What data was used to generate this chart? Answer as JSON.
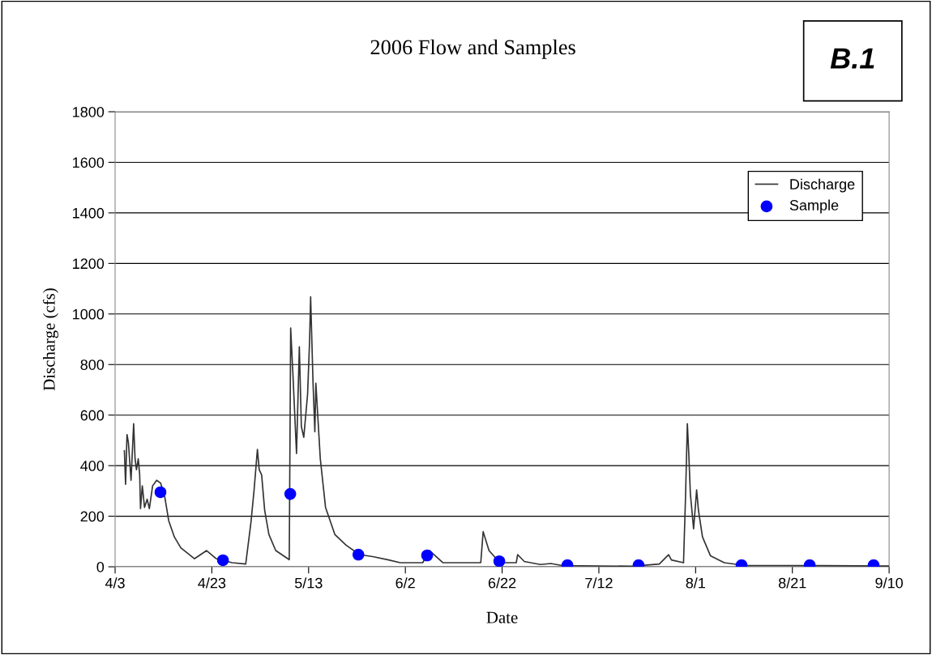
{
  "chart_data": {
    "type": "line",
    "title": "2006 Flow and Samples",
    "xlabel": "Date",
    "ylabel": "Discharge (cfs)",
    "annotations": [
      "B.1"
    ],
    "xlim": [
      "2006-04-03",
      "2006-09-10"
    ],
    "xticks": [
      {
        "value": "2006-04-03",
        "label": "4/3"
      },
      {
        "value": "2006-04-23",
        "label": "4/23"
      },
      {
        "value": "2006-05-13",
        "label": "5/13"
      },
      {
        "value": "2006-06-02",
        "label": "6/2"
      },
      {
        "value": "2006-06-22",
        "label": "6/22"
      },
      {
        "value": "2006-07-12",
        "label": "7/12"
      },
      {
        "value": "2006-08-01",
        "label": "8/1"
      },
      {
        "value": "2006-08-21",
        "label": "8/21"
      },
      {
        "value": "2006-09-10",
        "label": "9/10"
      }
    ],
    "ylim": [
      0,
      1800
    ],
    "yticks": [
      0,
      200,
      400,
      600,
      800,
      1000,
      1200,
      1400,
      1600,
      1800
    ],
    "grid": "y",
    "legend": "top right",
    "series": [
      {
        "name": "Discharge",
        "color": "#333333",
        "marker": "none",
        "line_style": "solid",
        "x": [
          "2006-04-04T22:00",
          "2006-04-05T04:00",
          "2006-04-05T11:00",
          "2006-04-05T18:00",
          "2006-04-06T07:00",
          "2006-04-06T20:00",
          "2006-04-07T03:00",
          "2006-04-07T10:00",
          "2006-04-07T19:00",
          "2006-04-08T02:00",
          "2006-04-08T06:00",
          "2006-04-08T15:00",
          "2006-04-09T02:00",
          "2006-04-09T15:00",
          "2006-04-10T02:00",
          "2006-04-10T18:00",
          "2006-04-11T14:00",
          "2006-04-12T10:00",
          "2006-04-13T06:00",
          "2006-04-14T02:00",
          "2006-04-15T06:00",
          "2006-04-16T14:00",
          "2006-04-19T10:00",
          "2006-04-21T22:00",
          "2006-04-23T22:00",
          "2006-04-27T05:00",
          "2006-04-30T00:00",
          "2006-05-01T02:00",
          "2006-05-01T17:00",
          "2006-05-02T10:00",
          "2006-05-02T19:00",
          "2006-05-03T07:00",
          "2006-05-03T22:00",
          "2006-05-04T19:00",
          "2006-05-06T05:00",
          "2006-05-09T00:00",
          "2006-05-09T07:00",
          "2006-05-09T19:00",
          "2006-05-10T12:00",
          "2006-05-11T02:00",
          "2006-05-11T12:00",
          "2006-05-12T00:00",
          "2006-05-12T19:00",
          "2006-05-13T05:00",
          "2006-05-13T10:00",
          "2006-05-13T22:00",
          "2006-05-14T07:00",
          "2006-05-14T12:00",
          "2006-05-15T10:00",
          "2006-05-16T12:00",
          "2006-05-18T10:00",
          "2006-05-20T17:00",
          "2006-05-23T12:00",
          "2006-05-26T07:00",
          "2006-05-29T14:00",
          "2006-05-31T22:00",
          "2006-06-05T14:00",
          "2006-06-07T00:00",
          "2006-06-09T19:00",
          "2006-06-17T14:00",
          "2006-06-18T02:00",
          "2006-06-19T07:00",
          "2006-06-21T12:00",
          "2006-06-24T22:00",
          "2006-06-25T05:00",
          "2006-06-26T14:00",
          "2006-06-29T22:00",
          "2006-07-02T02:00",
          "2006-07-04T10:00",
          "2006-07-18T22:00",
          "2006-07-24T12:00",
          "2006-07-26T10:00",
          "2006-07-27T00:00",
          "2006-07-29T12:00",
          "2006-07-29T22:00",
          "2006-07-30T07:00",
          "2006-07-30T14:00",
          "2006-07-30T22:00",
          "2006-07-31T14:00",
          "2006-08-01T05:00",
          "2006-08-01T14:00",
          "2006-08-02T10:00",
          "2006-08-04T02:00",
          "2006-08-06T22:00",
          "2006-08-11T07:00",
          "2006-08-19T17:00",
          "2006-09-09T22:00"
        ],
        "values": [
          459,
          326,
          523,
          491,
          342,
          566,
          427,
          384,
          427,
          363,
          230,
          320,
          235,
          267,
          230,
          320,
          342,
          331,
          278,
          182,
          118,
          75,
          32,
          64,
          32,
          16,
          11,
          176,
          299,
          464,
          384,
          363,
          224,
          128,
          64,
          28,
          945,
          747,
          448,
          870,
          555,
          512,
          683,
          897,
          1068,
          726,
          534,
          726,
          427,
          235,
          128,
          86,
          48,
          40,
          27,
          16,
          16,
          64,
          16,
          16,
          139,
          64,
          16,
          16,
          48,
          21,
          9,
          13,
          5,
          2,
          11,
          48,
          27,
          16,
          278,
          566,
          448,
          288,
          150,
          304,
          224,
          118,
          43,
          16,
          5,
          5,
          3
        ]
      },
      {
        "name": "Sample",
        "type": "scatter",
        "color": "#0000ff",
        "marker": "circle",
        "x": [
          "2006-04-12T09:00",
          "2006-04-25T07:00",
          "2006-05-09T05:00",
          "2006-05-23T07:00",
          "2006-06-06T12:00",
          "2006-06-21T10:00",
          "2006-07-05T12:00",
          "2006-07-20T05:00",
          "2006-08-10T12:00",
          "2006-08-24T14:00",
          "2006-09-06T19:00"
        ],
        "values": [
          295,
          26,
          288,
          48,
          45,
          22,
          6,
          6,
          6,
          6,
          6
        ]
      }
    ]
  }
}
